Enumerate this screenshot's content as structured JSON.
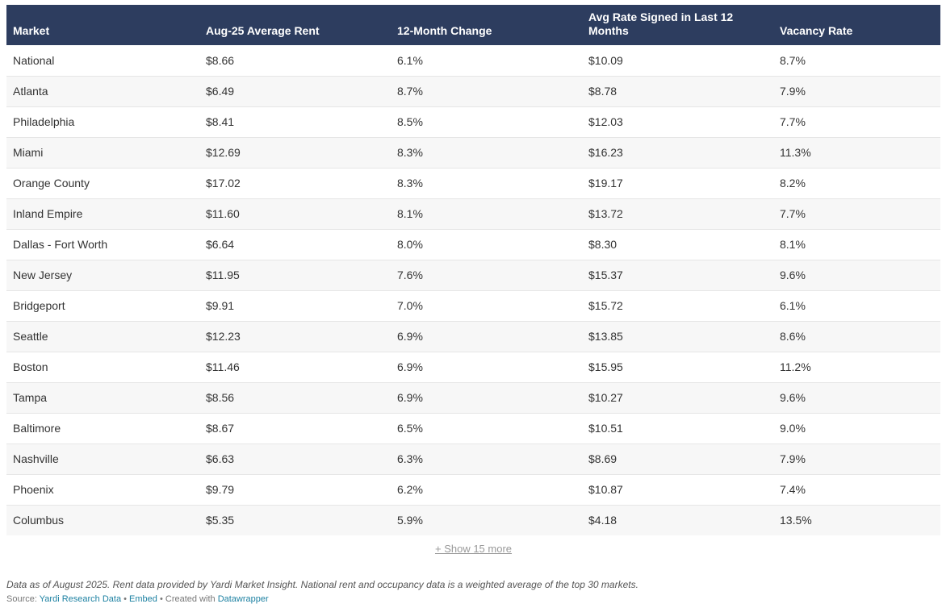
{
  "chart_data": {
    "type": "table",
    "columns": [
      "Market",
      "Aug-25 Average Rent",
      "12-Month Change",
      "Avg Rate Signed in Last 12 Months",
      "Vacancy Rate"
    ],
    "rows": [
      [
        "National",
        "$8.66",
        "6.1%",
        "$10.09",
        "8.7%"
      ],
      [
        "Atlanta",
        "$6.49",
        "8.7%",
        "$8.78",
        "7.9%"
      ],
      [
        "Philadelphia",
        "$8.41",
        "8.5%",
        "$12.03",
        "7.7%"
      ],
      [
        "Miami",
        "$12.69",
        "8.3%",
        "$16.23",
        "11.3%"
      ],
      [
        "Orange County",
        "$17.02",
        "8.3%",
        "$19.17",
        "8.2%"
      ],
      [
        "Inland Empire",
        "$11.60",
        "8.1%",
        "$13.72",
        "7.7%"
      ],
      [
        "Dallas - Fort Worth",
        "$6.64",
        "8.0%",
        "$8.30",
        "8.1%"
      ],
      [
        "New Jersey",
        "$11.95",
        "7.6%",
        "$15.37",
        "9.6%"
      ],
      [
        "Bridgeport",
        "$9.91",
        "7.0%",
        "$15.72",
        "6.1%"
      ],
      [
        "Seattle",
        "$12.23",
        "6.9%",
        "$13.85",
        "8.6%"
      ],
      [
        "Boston",
        "$11.46",
        "6.9%",
        "$15.95",
        "11.2%"
      ],
      [
        "Tampa",
        "$8.56",
        "6.9%",
        "$10.27",
        "9.6%"
      ],
      [
        "Baltimore",
        "$8.67",
        "6.5%",
        "$10.51",
        "9.0%"
      ],
      [
        "Nashville",
        "$6.63",
        "6.3%",
        "$8.69",
        "7.9%"
      ],
      [
        "Phoenix",
        "$9.79",
        "6.2%",
        "$10.87",
        "7.4%"
      ],
      [
        "Columbus",
        "$5.35",
        "5.9%",
        "$4.18",
        "13.5%"
      ]
    ]
  },
  "show_more_label": "+ Show 15 more",
  "notes": "Data as of August 2025. Rent data provided by Yardi Market Insight. National rent and occupancy data is a weighted average of the top 30 markets.",
  "footer": {
    "source_prefix": "Source: ",
    "source_link": "Yardi Research Data",
    "separator": " • ",
    "embed_link": "Embed",
    "created_prefix": " • Created with ",
    "datawrapper_link": "Datawrapper"
  },
  "colors": {
    "header_bg": "#2d3d5f",
    "header_text": "#ffffff",
    "row_alt": "#f7f7f7",
    "link": "#1d81a2"
  }
}
